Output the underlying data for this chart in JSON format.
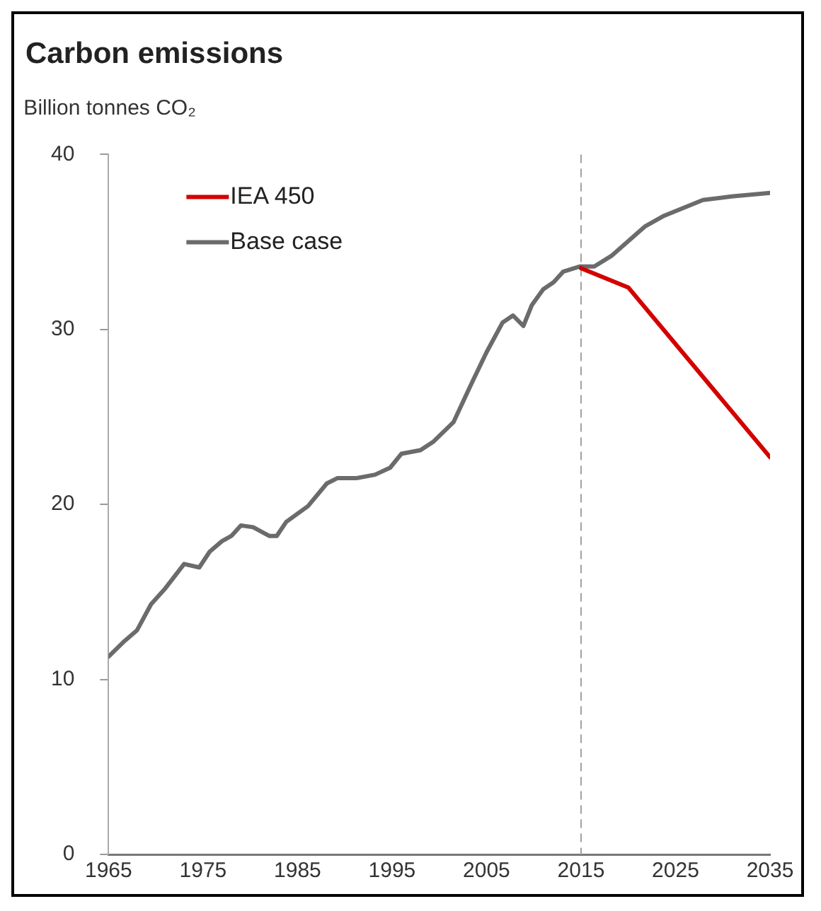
{
  "chart_data": {
    "type": "line",
    "title": "Carbon emissions",
    "ylabel": "Billion tonnes CO₂",
    "xlim": [
      1965,
      2035
    ],
    "xticks": [
      1965,
      1975,
      1985,
      1995,
      2005,
      2015,
      2025,
      2035
    ],
    "ylim": [
      0,
      40
    ],
    "yticks": [
      0,
      10,
      20,
      30,
      40
    ],
    "grid": false,
    "legend": "top left",
    "marker": "none",
    "line_style": "solid",
    "ref_lines": [
      {
        "axis": "x",
        "value": 2015,
        "label": null,
        "color": "#a0a0a0",
        "line_style": "dashed"
      }
    ],
    "series": [
      {
        "name": "IEA 450",
        "color": "#d40000",
        "x": [
          2015,
          2020,
          2035
        ],
        "values": [
          33.5,
          32.4,
          22.7
        ]
      },
      {
        "name": "Base case",
        "color": "#6b6b6b",
        "x": [
          1965,
          1966.7,
          1968,
          1969.5,
          1971,
          1973,
          1974.6,
          1975.7,
          1977,
          1978,
          1979,
          1980.3,
          1982,
          1982.8,
          1983.8,
          1986.1,
          1988.1,
          1989.2,
          1991.2,
          1993.2,
          1994.8,
          1996,
          1998,
          1999.4,
          2001.5,
          2003.4,
          2005,
          2006.7,
          2007.8,
          2008.9,
          2009.8,
          2011,
          2012.1,
          2013.1,
          2014.9,
          2016.4,
          2018.2,
          2021.8,
          2023.8,
          2027.9,
          2030.9,
          2035
        ],
        "values": [
          11.3,
          12.2,
          12.8,
          14.3,
          15.2,
          16.6,
          16.4,
          17.3,
          17.9,
          18.2,
          18.8,
          18.7,
          18.2,
          18.2,
          19.0,
          19.9,
          21.2,
          21.5,
          21.5,
          21.7,
          22.1,
          22.9,
          23.1,
          23.6,
          24.7,
          26.9,
          28.7,
          30.4,
          30.8,
          30.2,
          31.4,
          32.3,
          32.7,
          33.3,
          33.6,
          33.6,
          34.2,
          35.9,
          36.5,
          37.4,
          37.6,
          37.8
        ]
      }
    ]
  }
}
